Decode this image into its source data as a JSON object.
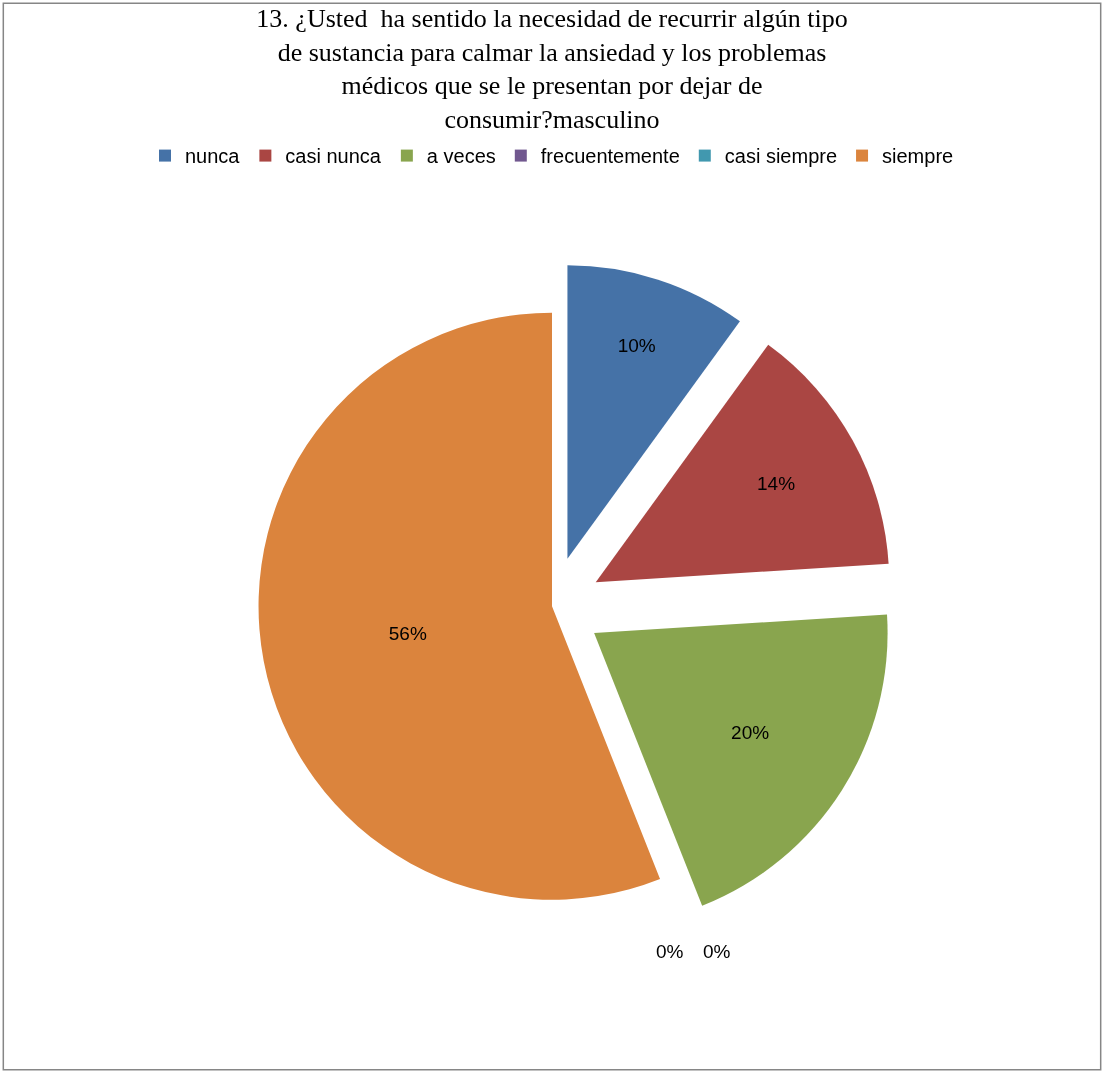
{
  "chart_data": {
    "type": "pie",
    "title": "13. ¿Usted  ha sentido la necesidad de recurrir algún tipo de sustancia para calmar la ansiedad y los problemas médicos que se le presentan por dejar de consumir?masculino",
    "categories": [
      "nunca",
      "casi nunca",
      "a veces",
      "frecuentemente",
      "casi siempre",
      "siempre"
    ],
    "values": [
      10,
      14,
      20,
      0,
      0,
      56
    ],
    "value_labels": [
      "10%",
      "14%",
      "20%",
      "0%",
      "0%",
      "56%"
    ],
    "colors": [
      "#4572a7",
      "#aa4643",
      "#89a54e",
      "#71588f",
      "#4198af",
      "#db843d"
    ],
    "legend": "top"
  }
}
